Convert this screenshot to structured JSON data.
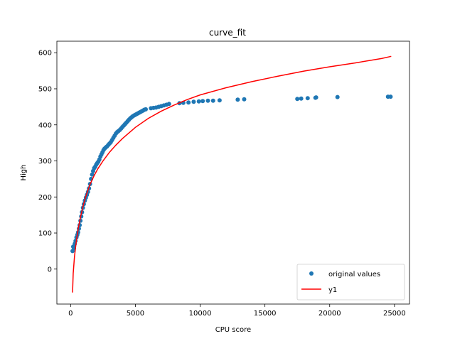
{
  "chart_data": {
    "type": "scatter",
    "title": "curve_fit",
    "xlabel": "CPU score",
    "ylabel": "High",
    "xlim": [
      -1060,
      26160
    ],
    "ylim": [
      -97,
      632
    ],
    "xticks": [
      0,
      5000,
      10000,
      15000,
      20000,
      25000
    ],
    "yticks": [
      0,
      100,
      200,
      300,
      400,
      500,
      600
    ],
    "grid": false,
    "legend_position": "lower-right",
    "colors": {
      "scatter": "#1f77b4",
      "fit": "#ff0000"
    },
    "series": [
      {
        "name": "original values",
        "kind": "scatter",
        "points": [
          [
            150,
            50
          ],
          [
            200,
            62
          ],
          [
            260,
            58
          ],
          [
            320,
            70
          ],
          [
            380,
            78
          ],
          [
            450,
            88
          ],
          [
            520,
            95
          ],
          [
            580,
            102
          ],
          [
            640,
            112
          ],
          [
            700,
            122
          ],
          [
            760,
            134
          ],
          [
            820,
            146
          ],
          [
            880,
            158
          ],
          [
            950,
            170
          ],
          [
            1020,
            180
          ],
          [
            1100,
            190
          ],
          [
            1180,
            198
          ],
          [
            1260,
            206
          ],
          [
            1340,
            214
          ],
          [
            1420,
            224
          ],
          [
            1500,
            236
          ],
          [
            1580,
            250
          ],
          [
            1660,
            262
          ],
          [
            1740,
            272
          ],
          [
            1820,
            280
          ],
          [
            1900,
            284
          ],
          [
            1980,
            290
          ],
          [
            2060,
            294
          ],
          [
            2140,
            298
          ],
          [
            2220,
            304
          ],
          [
            2300,
            312
          ],
          [
            2380,
            318
          ],
          [
            2460,
            324
          ],
          [
            2540,
            330
          ],
          [
            2620,
            334
          ],
          [
            2700,
            337
          ],
          [
            2800,
            340
          ],
          [
            2900,
            344
          ],
          [
            3000,
            348
          ],
          [
            3100,
            352
          ],
          [
            3200,
            358
          ],
          [
            3300,
            364
          ],
          [
            3400,
            370
          ],
          [
            3500,
            376
          ],
          [
            3600,
            380
          ],
          [
            3700,
            383
          ],
          [
            3800,
            386
          ],
          [
            3900,
            390
          ],
          [
            4000,
            394
          ],
          [
            4100,
            398
          ],
          [
            4200,
            402
          ],
          [
            4300,
            406
          ],
          [
            4400,
            410
          ],
          [
            4500,
            414
          ],
          [
            4600,
            418
          ],
          [
            4700,
            421
          ],
          [
            4800,
            424
          ],
          [
            4900,
            426
          ],
          [
            5000,
            428
          ],
          [
            5100,
            430
          ],
          [
            5200,
            432
          ],
          [
            5300,
            434
          ],
          [
            5400,
            436
          ],
          [
            5500,
            438
          ],
          [
            5600,
            440
          ],
          [
            5700,
            442
          ],
          [
            5800,
            443
          ],
          [
            6200,
            446
          ],
          [
            6400,
            447
          ],
          [
            6600,
            448
          ],
          [
            6800,
            450
          ],
          [
            7000,
            452
          ],
          [
            7200,
            454
          ],
          [
            7400,
            456
          ],
          [
            7600,
            458
          ],
          [
            8400,
            460
          ],
          [
            8700,
            461
          ],
          [
            9100,
            462
          ],
          [
            9500,
            464
          ],
          [
            9900,
            465
          ],
          [
            10200,
            466
          ],
          [
            10600,
            467
          ],
          [
            11000,
            467
          ],
          [
            11500,
            468
          ],
          [
            12900,
            470
          ],
          [
            13400,
            471
          ],
          [
            17500,
            472
          ],
          [
            17800,
            473
          ],
          [
            18300,
            474
          ],
          [
            18900,
            475
          ],
          [
            18950,
            476
          ],
          [
            20600,
            477
          ],
          [
            24500,
            478
          ],
          [
            24700,
            478
          ]
        ]
      },
      {
        "name": "y1",
        "kind": "line",
        "points": [
          [
            150,
            -65
          ],
          [
            200,
            -12
          ],
          [
            300,
            35
          ],
          [
            450,
            80
          ],
          [
            600,
            115
          ],
          [
            800,
            150
          ],
          [
            1000,
            180
          ],
          [
            1250,
            210
          ],
          [
            1500,
            235
          ],
          [
            1800,
            258
          ],
          [
            2100,
            278
          ],
          [
            2500,
            300
          ],
          [
            3000,
            324
          ],
          [
            3500,
            344
          ],
          [
            4000,
            362
          ],
          [
            5000,
            393
          ],
          [
            6000,
            418
          ],
          [
            7000,
            438
          ],
          [
            8000,
            455
          ],
          [
            9000,
            470
          ],
          [
            10000,
            483
          ],
          [
            12000,
            503
          ],
          [
            14000,
            520
          ],
          [
            16000,
            535
          ],
          [
            18000,
            549
          ],
          [
            20000,
            561
          ],
          [
            22000,
            572
          ],
          [
            24000,
            584
          ],
          [
            24750,
            590
          ]
        ]
      }
    ]
  }
}
